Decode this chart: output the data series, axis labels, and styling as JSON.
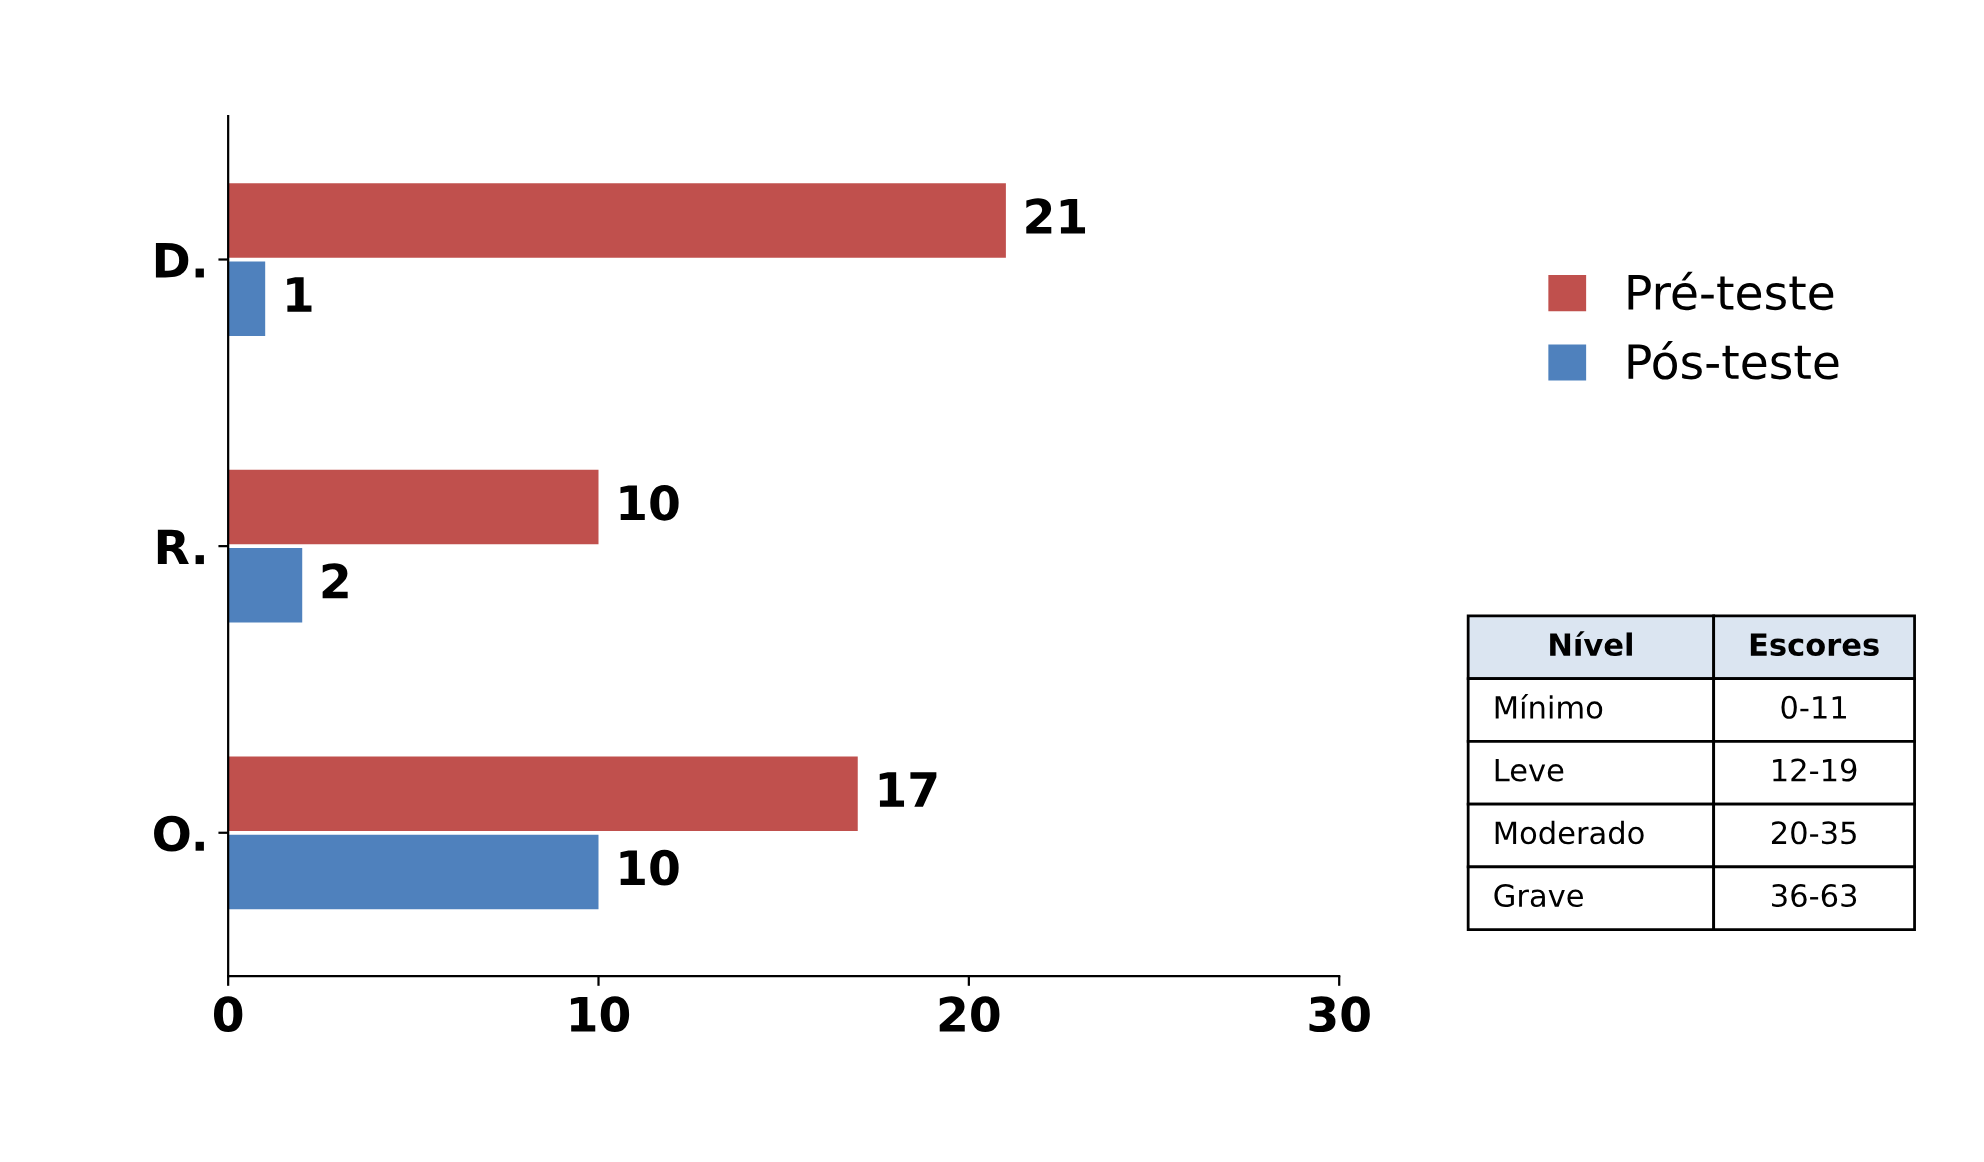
{
  "chart_data": {
    "type": "bar",
    "orientation": "horizontal",
    "categories": [
      "D.",
      "R.",
      "O."
    ],
    "series": [
      {
        "name": "Pré-teste",
        "color": "#c0504d",
        "values": [
          21,
          10,
          17
        ]
      },
      {
        "name": "Pós-teste",
        "color": "#4f81bd",
        "values": [
          1,
          2,
          10
        ]
      }
    ],
    "xlim": [
      0,
      30
    ],
    "xticks": [
      0,
      10,
      20,
      30
    ],
    "data_labels": true,
    "legend": "right",
    "grid": false,
    "annotations": [
      "Nível",
      "Escores",
      "Mínimo",
      "0-11",
      "Leve",
      "12-19",
      "Moderado",
      "20-35",
      "Grave",
      "36-63"
    ]
  }
}
